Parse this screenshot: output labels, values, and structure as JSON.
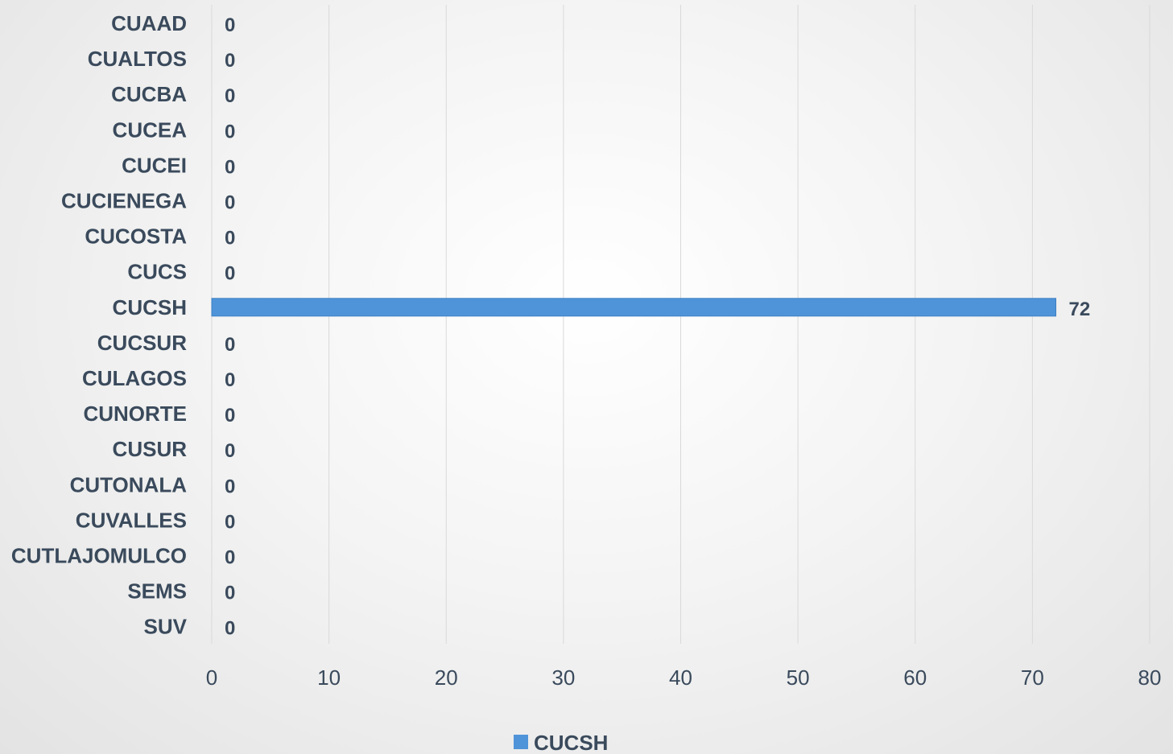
{
  "chart_data": {
    "type": "bar",
    "orientation": "horizontal",
    "categories": [
      "CUAAD",
      "CUALTOS",
      "CUCBA",
      "CUCEA",
      "CUCEI",
      "CUCIENEGA",
      "CUCOSTA",
      "CUCS",
      "CUCSH",
      "CUCSUR",
      "CULAGOS",
      "CUNORTE",
      "CUSUR",
      "CUTONALA",
      "CUVALLES",
      "CUTLAJOMULCO",
      "SEMS",
      "SUV"
    ],
    "series": [
      {
        "name": "CUCSH",
        "values": [
          0,
          0,
          0,
          0,
          0,
          0,
          0,
          0,
          72,
          0,
          0,
          0,
          0,
          0,
          0,
          0,
          0,
          0
        ]
      }
    ],
    "xlim": [
      0,
      80
    ],
    "xticks": [
      0,
      10,
      20,
      30,
      40,
      50,
      60,
      70,
      80
    ],
    "grid": true,
    "legend_position": "bottom",
    "data_labels": true
  },
  "colors": {
    "bar": "#4f94d9",
    "bar_edge": "#3d7fc4",
    "text": "#3a4a5c",
    "grid": "#d9d9d9"
  }
}
